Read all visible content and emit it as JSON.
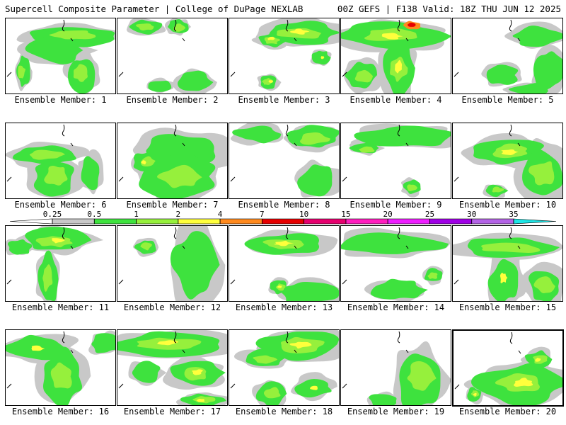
{
  "header": {
    "left": "Supercell Composite Parameter | College of DuPage NEXLAB",
    "right": "00Z GEFS | F138 Valid: 18Z THU JUN 12 2025"
  },
  "colorbar": {
    "levels": [
      "0.25",
      "0.5",
      "1",
      "2",
      "4",
      "7",
      "10",
      "15",
      "20",
      "25",
      "30",
      "35"
    ],
    "colors": [
      "#ffffff",
      "#c8c8c8",
      "#3ee23e",
      "#96f03c",
      "#ffff3c",
      "#ff8a1e",
      "#e60000",
      "#e6006e",
      "#ff1ebe",
      "#ee1eff",
      "#a000e6",
      "#b464e6",
      "#1ee6e6"
    ]
  },
  "fill_colors": {
    "gray": "#c8c8c8",
    "green": "#3ee23e",
    "lime": "#96f03c",
    "yellow": "#ffff3c",
    "orange": "#ff8a1e",
    "red": "#e60000"
  },
  "members": [
    {
      "label": "Ensemble Member: 1",
      "intensity": "moderate"
    },
    {
      "label": "Ensemble Member: 2",
      "intensity": "weak"
    },
    {
      "label": "Ensemble Member: 3",
      "intensity": "moderate"
    },
    {
      "label": "Ensemble Member: 4",
      "intensity": "strong"
    },
    {
      "label": "Ensemble Member: 5",
      "intensity": "weak"
    },
    {
      "label": "Ensemble Member: 6",
      "intensity": "moderate"
    },
    {
      "label": "Ensemble Member: 7",
      "intensity": "moderate"
    },
    {
      "label": "Ensemble Member: 8",
      "intensity": "weak"
    },
    {
      "label": "Ensemble Member: 9",
      "intensity": "moderate"
    },
    {
      "label": "Ensemble Member: 10",
      "intensity": "moderate"
    },
    {
      "label": "Ensemble Member: 11",
      "intensity": "moderate"
    },
    {
      "label": "Ensemble Member: 12",
      "intensity": "moderate"
    },
    {
      "label": "Ensemble Member: 13",
      "intensity": "moderate"
    },
    {
      "label": "Ensemble Member: 14",
      "intensity": "moderate"
    },
    {
      "label": "Ensemble Member: 15",
      "intensity": "moderate"
    },
    {
      "label": "Ensemble Member: 16",
      "intensity": "moderate"
    },
    {
      "label": "Ensemble Member: 17",
      "intensity": "moderate"
    },
    {
      "label": "Ensemble Member: 18",
      "intensity": "moderate"
    },
    {
      "label": "Ensemble Member: 19",
      "intensity": "moderate"
    },
    {
      "label": "Ensemble Member: 20",
      "intensity": "moderate",
      "selected": true
    }
  ]
}
